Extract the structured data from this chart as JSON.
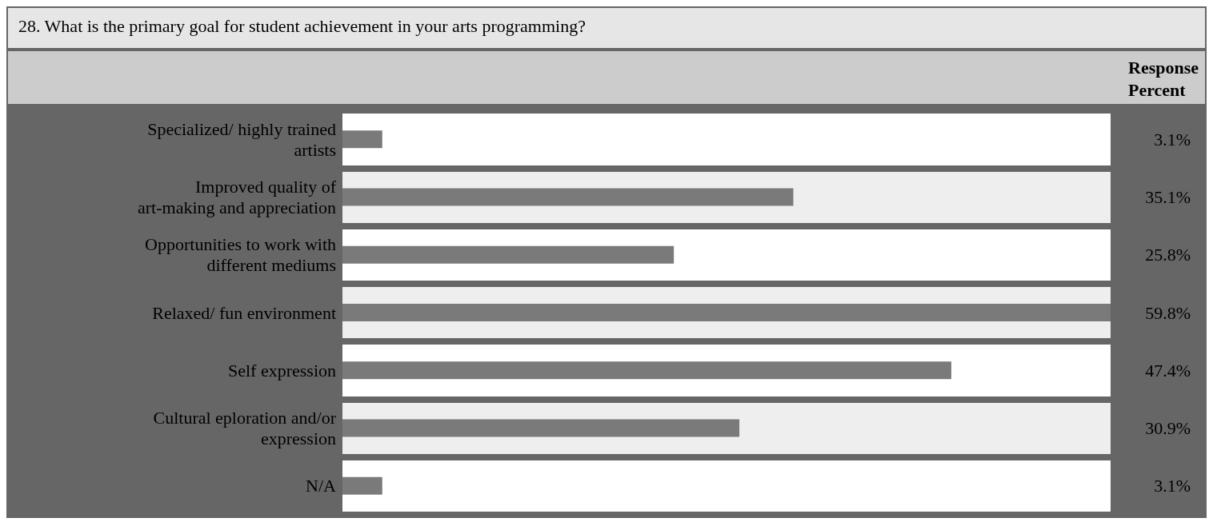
{
  "chart_data": {
    "type": "bar",
    "orientation": "horizontal",
    "title": "28. What is the primary goal for student achievement in your arts programming?",
    "categories": [
      "Specialized/ highly trained artists",
      "Improved quality of art-making and appreciation",
      "Opportunities to work with different mediums",
      "Relaxed/ fun environment",
      "Self expression",
      "Cultural eploration and/or expression",
      "N/A"
    ],
    "values": [
      3.1,
      35.1,
      25.8,
      59.8,
      47.4,
      30.9,
      3.1
    ],
    "value_labels": [
      "3.1%",
      "35.1%",
      "25.8%",
      "59.8%",
      "47.4%",
      "30.9%",
      "3.1%"
    ],
    "color": "#7a7a7a",
    "annotations": [
      "Response Percent"
    ]
  }
}
